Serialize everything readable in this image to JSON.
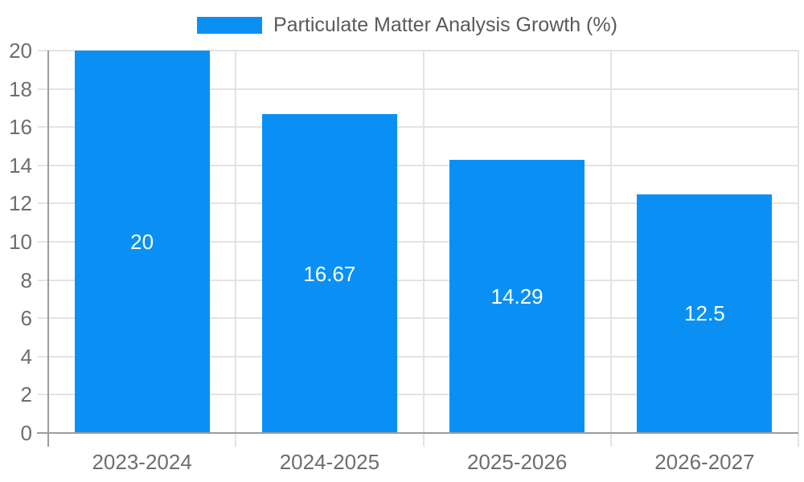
{
  "colors": {
    "bar": "#0a90f5",
    "grid": "#e3e3e3",
    "axis": "#9c9c9c",
    "tick_label": "#6e6e6e",
    "legend_text": "#5a5a5a",
    "value_label": "#ffffff",
    "background": "#ffffff"
  },
  "chart_data": {
    "type": "bar",
    "title": "",
    "legend": "Particulate Matter Analysis Growth (%)",
    "legend_position": "top-center",
    "categories": [
      "2023-2024",
      "2024-2025",
      "2025-2026",
      "2026-2027"
    ],
    "values": [
      20,
      16.67,
      14.29,
      12.5
    ],
    "value_labels": [
      "20",
      "16.67",
      "14.29",
      "12.5"
    ],
    "xlabel": "",
    "ylabel": "",
    "ylim": [
      0,
      20
    ],
    "yticks": [
      "0",
      "2",
      "4",
      "6",
      "8",
      "10",
      "12",
      "14",
      "16",
      "18",
      "20"
    ],
    "grid": true
  }
}
